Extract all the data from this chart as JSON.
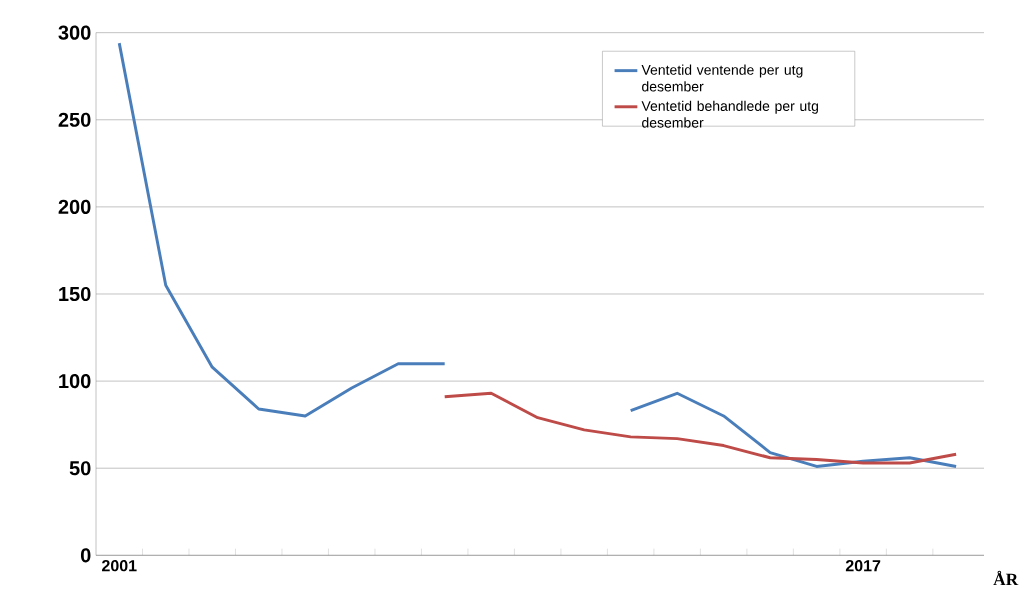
{
  "chart_data": {
    "type": "line",
    "xlabel": "ÅR",
    "categories": [
      "2001",
      null,
      null,
      null,
      null,
      null,
      null,
      null,
      null,
      null,
      null,
      null,
      null,
      null,
      null,
      null,
      "2017",
      null,
      null
    ],
    "series": [
      {
        "name": "Ventetid ventende per utg desember",
        "color": "#4a7ebb",
        "values": [
          294,
          155,
          108,
          84,
          80,
          96,
          110,
          110,
          null,
          null,
          null,
          83,
          93,
          80,
          59,
          51,
          54,
          56,
          51
        ]
      },
      {
        "name": "Ventetid behandlede per utg desember",
        "color": "#be4b48",
        "values": [
          null,
          null,
          null,
          null,
          null,
          null,
          null,
          91,
          93,
          79,
          72,
          68,
          67,
          63,
          56,
          55,
          53,
          53,
          58
        ]
      }
    ],
    "ylim": [
      0,
      300
    ],
    "yticks": [
      0,
      50,
      100,
      150,
      200,
      250,
      300
    ],
    "grid": "y",
    "legend": "top right",
    "marker": "none",
    "line_style": "solid"
  }
}
